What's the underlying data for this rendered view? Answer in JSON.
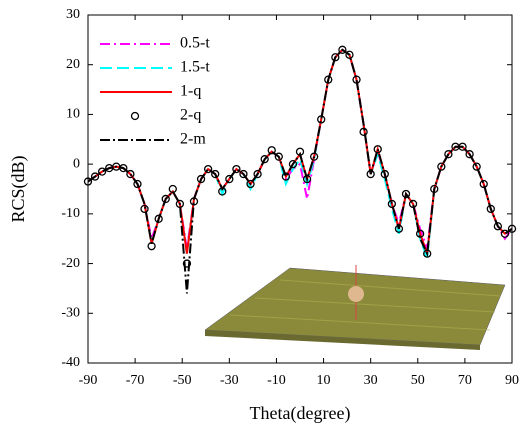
{
  "chart_data": {
    "type": "line",
    "xlabel": "Theta(degree)",
    "ylabel": "RCS(dB)",
    "xlim": [
      -90,
      90
    ],
    "ylim": [
      -40,
      30
    ],
    "xticks": [
      -90,
      -70,
      -50,
      -30,
      -10,
      10,
      30,
      50,
      70,
      90
    ],
    "yticks": [
      -40,
      -30,
      -20,
      -10,
      0,
      10,
      20,
      30
    ],
    "legend": "upper left",
    "x": [
      -90,
      -87,
      -84,
      -81,
      -78,
      -75,
      -72,
      -69,
      -66,
      -63,
      -60,
      -57,
      -54,
      -51,
      -48,
      -45,
      -42,
      -39,
      -36,
      -33,
      -30,
      -27,
      -24,
      -21,
      -18,
      -15,
      -12,
      -9,
      -6,
      -3,
      0,
      3,
      6,
      9,
      12,
      15,
      18,
      21,
      24,
      27,
      30,
      33,
      36,
      39,
      42,
      45,
      48,
      51,
      54,
      57,
      60,
      63,
      66,
      69,
      72,
      75,
      78,
      81,
      84,
      87,
      90
    ],
    "series": [
      {
        "name": "0.5-t",
        "color": "#ff00ff",
        "dash": "10,4,2,4",
        "values": [
          -3.5,
          -2.5,
          -1.5,
          -0.8,
          -0.5,
          -0.8,
          -2,
          -4,
          -8,
          -15,
          -11,
          -7,
          -5.5,
          -8,
          -17,
          -7,
          -3,
          -1,
          -2,
          -5,
          -3,
          -1,
          -2,
          -4,
          -2,
          1,
          2.5,
          1.5,
          -3,
          -1,
          0,
          -7,
          1,
          9,
          17,
          21.5,
          23,
          22,
          17,
          8,
          -2,
          2.5,
          -2,
          -8,
          -12,
          -6,
          -8,
          -13,
          -17,
          -5,
          -0.5,
          2,
          3.5,
          3.5,
          2,
          -0.5,
          -4,
          -9,
          -12.5,
          -15,
          -13
        ]
      },
      {
        "name": "1.5-t",
        "color": "#00ffff",
        "dash": "12,5",
        "values": [
          -3.5,
          -2.5,
          -1.5,
          -0.8,
          -0.5,
          -0.8,
          -2,
          -4,
          -8,
          -16,
          -11,
          -7,
          -5.5,
          -8,
          -18,
          -7,
          -3,
          -1,
          -2,
          -6,
          -3,
          -1,
          -2,
          -5,
          -2,
          1,
          2.5,
          1.5,
          -4,
          -1,
          1,
          -4,
          1,
          9,
          17,
          21.5,
          23,
          22,
          17,
          8,
          -2,
          2,
          -3,
          -9,
          -14,
          -6,
          -8,
          -15,
          -19,
          -5,
          -0.5,
          2,
          3.5,
          3.5,
          2,
          -0.5,
          -4,
          -9,
          -12.5,
          -14,
          -13
        ]
      },
      {
        "name": "1-q",
        "color": "#ff0000",
        "dash": "",
        "values": [
          -3.5,
          -2.5,
          -1.5,
          -0.8,
          -0.5,
          -0.8,
          -2,
          -4,
          -8,
          -16,
          -11,
          -7,
          -5.5,
          -8,
          -18,
          -7,
          -3,
          -1,
          -2,
          -5,
          -3,
          -1,
          -2,
          -4,
          -2,
          1,
          2.5,
          1.5,
          -2.5,
          0,
          2,
          -3,
          1.5,
          9,
          17,
          21.5,
          23,
          22,
          17,
          8,
          -2,
          3,
          -2,
          -8,
          -13,
          -6,
          -8,
          -14,
          -18,
          -5,
          -0.5,
          2,
          3.5,
          3.5,
          2,
          -0.5,
          -4,
          -9,
          -12.5,
          -14,
          -13
        ]
      },
      {
        "name": "2-q",
        "color": "#000000",
        "marker": "circle",
        "values": [
          -3.5,
          -2.5,
          -1.5,
          -0.8,
          -0.5,
          -0.8,
          -2,
          -4,
          -9,
          -16.5,
          -11,
          -7,
          -5,
          -8,
          -20,
          -7.5,
          -3,
          -1,
          -2,
          -5.5,
          -3,
          -1,
          -2,
          -4,
          -2,
          1,
          2.8,
          1.5,
          -2.5,
          0,
          2.5,
          -3,
          1.5,
          9,
          17,
          21.5,
          23,
          22,
          17,
          6.5,
          -2,
          3,
          -2,
          -8,
          -13,
          -6,
          -8,
          -14,
          -18,
          -5,
          -0.5,
          2,
          3.5,
          3.5,
          2,
          -0.5,
          -4,
          -9,
          -12.5,
          -14,
          -13
        ]
      },
      {
        "name": "2-m",
        "color": "#000000",
        "dash": "10,3,2,3",
        "values": [
          -3.5,
          -2.5,
          -1.5,
          -0.8,
          -0.5,
          -0.8,
          -2,
          -4,
          -8,
          -16,
          -11,
          -7,
          -5.5,
          -8,
          -26,
          -7,
          -3,
          -1,
          -2,
          -5,
          -3,
          -1,
          -2,
          -4,
          -2,
          1,
          2.5,
          1.5,
          -2.5,
          0,
          2,
          -3,
          1.5,
          9,
          17,
          21.5,
          23,
          22,
          17,
          8,
          -2,
          3,
          -2,
          -8,
          -13,
          -6,
          -8,
          -15,
          -18,
          -5,
          -0.5,
          2,
          3.5,
          3.5,
          2,
          -0.5,
          -4,
          -9,
          -12.5,
          -14,
          -13
        ]
      }
    ]
  }
}
